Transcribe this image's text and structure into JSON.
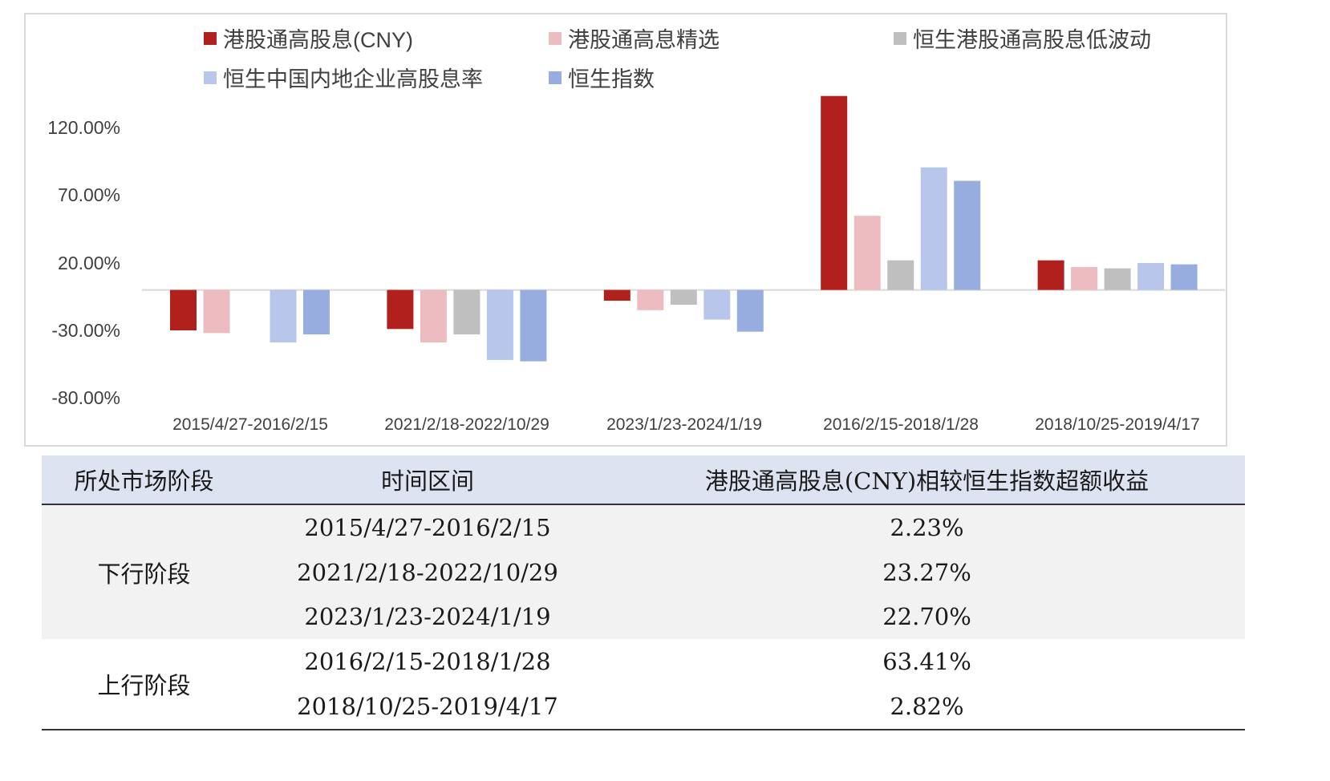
{
  "chart_data": {
    "type": "bar",
    "categories": [
      "2015/4/27-2016/2/15",
      "2021/2/18-2022/10/29",
      "2023/1/23-2024/1/19",
      "2016/2/15-2018/1/28",
      "2018/10/25-2019/4/17"
    ],
    "series": [
      {
        "name": "港股通高股息(CNY)",
        "color": "#b0211d",
        "values": [
          -30.0,
          -29.0,
          -8.0,
          144.0,
          22.0
        ]
      },
      {
        "name": "港股通高息精选",
        "color": "#ecbcc1",
        "values": [
          -32.0,
          -39.0,
          -15.0,
          55.0,
          17.0
        ]
      },
      {
        "name": "恒生港股通高股息低波动",
        "color": "#bfbfbf",
        "values": [
          null,
          -33.0,
          -11.0,
          22.0,
          16.0
        ]
      },
      {
        "name": "恒生中国内地企业高股息率",
        "color": "#b7c6ea",
        "values": [
          -39.0,
          -52.0,
          -22.0,
          91.0,
          20.0
        ]
      },
      {
        "name": "恒生指数",
        "color": "#97ade0",
        "values": [
          -33.0,
          -53.0,
          -31.0,
          81.0,
          19.0
        ]
      }
    ],
    "yticks": [
      "120.00%",
      "70.00%",
      "20.00%",
      "-30.00%",
      "-80.00%"
    ],
    "ytick_values": [
      120,
      70,
      20,
      -30,
      -80
    ],
    "ylim": [
      -80,
      120
    ],
    "title": "",
    "xlabel": "",
    "ylabel": "",
    "legend_position": "top",
    "grid": false
  },
  "table": {
    "headers": [
      "所处市场阶段",
      "时间区间",
      "港股通高股息(CNY)相较恒生指数超额收益"
    ],
    "groups": [
      {
        "stage": "下行阶段",
        "rows": [
          {
            "period": "2015/4/27-2016/2/15",
            "excess": "2.23%"
          },
          {
            "period": "2021/2/18-2022/10/29",
            "excess": "23.27%"
          },
          {
            "period": "2023/1/23-2024/1/19",
            "excess": "22.70%"
          }
        ]
      },
      {
        "stage": "上行阶段",
        "rows": [
          {
            "period": "2016/2/15-2018/1/28",
            "excess": "63.41%"
          },
          {
            "period": "2018/10/25-2019/4/17",
            "excess": "2.82%"
          }
        ]
      }
    ]
  }
}
